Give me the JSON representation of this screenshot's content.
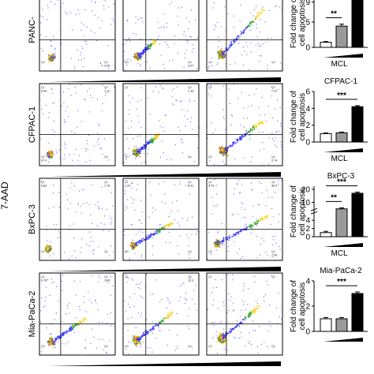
{
  "y_axis_shared": "7-AAD",
  "flow_quadrant_codes": [
    "Q1",
    "Q2",
    "Q3",
    "Q4"
  ],
  "rows": [
    {
      "cell_line": "PANC-",
      "treatment_label": "MCL",
      "bar_ylabel_lines": [
        "Fold change of",
        "cell apoptosis"
      ],
      "bar_title": "",
      "quadrant_values": [
        [
          "",
          "",
          "",
          "2.55"
        ],
        [
          "",
          "",
          "",
          "7.57"
        ],
        [
          "",
          "",
          "",
          ""
        ]
      ],
      "chart_data": {
        "type": "bar",
        "categories": [
          "",
          "",
          ""
        ],
        "values": [
          1.0,
          4.2,
          9.3
        ],
        "errors": [
          0.15,
          0.4,
          0.3
        ],
        "ylim": [
          0,
          10
        ],
        "yticks": [
          0,
          5,
          9
        ],
        "axis_break": false,
        "significance": [
          "**"
        ]
      }
    },
    {
      "cell_line": "CFPAC-1",
      "treatment_label": "MCL",
      "bar_ylabel_lines": [
        "Fold change of",
        "cell apoptosis"
      ],
      "bar_title": "CFPAC-1",
      "quadrant_values": [
        [
          "8.59",
          "1.12",
          "97.0",
          ""
        ],
        [
          "",
          "1.36",
          "",
          ""
        ],
        [
          "",
          "7.22",
          "",
          "2.74"
        ]
      ],
      "chart_data": {
        "type": "bar",
        "categories": [
          "",
          "",
          ""
        ],
        "values": [
          1.0,
          1.1,
          4.2
        ],
        "errors": [
          0.08,
          0.08,
          0.12
        ],
        "ylim": [
          0,
          6
        ],
        "yticks": [
          0,
          2,
          4,
          6
        ],
        "axis_break": false,
        "significance": [
          "***"
        ]
      }
    },
    {
      "cell_line": "BxPC-3",
      "treatment_label": "MCL",
      "bar_ylabel_lines": [
        "Fold change of",
        "cell apoptosis"
      ],
      "bar_title": "BxPC-3",
      "quadrant_values": [
        [
          "0.63",
          "1.78",
          "",
          ""
        ],
        [
          "1.29",
          "8.91",
          "",
          ""
        ],
        [
          "3.79",
          "36.4",
          "",
          "7.99"
        ]
      ],
      "chart_data": {
        "type": "bar",
        "categories": [
          "",
          "",
          ""
        ],
        "values": [
          1.0,
          5.0,
          17.0
        ],
        "errors": [
          0.3,
          0.8,
          0.9
        ],
        "ylim": [
          0,
          20
        ],
        "yticks": [
          0,
          2,
          4,
          10,
          20
        ],
        "axis_break": true,
        "significance": [
          "**",
          "***"
        ]
      }
    },
    {
      "cell_line": "Mia-PaCa-2",
      "treatment_label": "",
      "bar_ylabel_lines": [
        "Fold change of",
        "cell apoptosis"
      ],
      "bar_title": "Mia-PaCa-2",
      "quadrant_values": [
        [
          "6.78",
          "10.5",
          "",
          ""
        ],
        [
          "",
          "12.9",
          "",
          ""
        ],
        [
          "",
          "",
          "",
          ""
        ]
      ],
      "chart_data": {
        "type": "bar",
        "categories": [
          "",
          "",
          ""
        ],
        "values": [
          1.0,
          1.0,
          3.0
        ],
        "errors": [
          0.1,
          0.1,
          0.12
        ],
        "ylim": [
          0,
          4
        ],
        "yticks": [
          0,
          2,
          4
        ],
        "axis_break": false,
        "significance": [
          "***"
        ]
      }
    }
  ]
}
